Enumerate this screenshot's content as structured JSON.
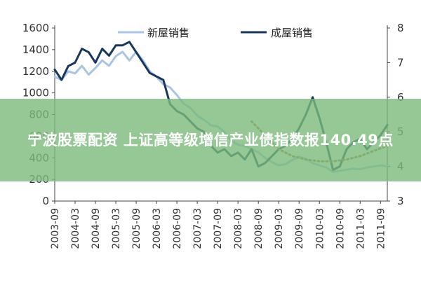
{
  "banner": {
    "headline": "宁波股票配资 上证高等级增信产业债指数报140.49点"
  },
  "chart_data": {
    "type": "line",
    "x": [
      "2003-09",
      "2003-11",
      "2004-01",
      "2004-03",
      "2004-05",
      "2004-07",
      "2004-09",
      "2004-11",
      "2005-01",
      "2005-03",
      "2005-05",
      "2005-07",
      "2005-09",
      "2005-11",
      "2006-01",
      "2006-03",
      "2006-05",
      "2006-07",
      "2006-09",
      "2006-11",
      "2007-01",
      "2007-03",
      "2007-05",
      "2007-07",
      "2007-09",
      "2007-11",
      "2008-01",
      "2008-03",
      "2008-05",
      "2008-07",
      "2008-09",
      "2008-11",
      "2009-01",
      "2009-03",
      "2009-05",
      "2009-07",
      "2009-09",
      "2009-11",
      "2010-01",
      "2010-03",
      "2010-05",
      "2010-07",
      "2010-09",
      "2010-11",
      "2011-01",
      "2011-03",
      "2011-05",
      "2011-07",
      "2011-09",
      "2011-11"
    ],
    "x_ticks": [
      "2003-09",
      "2004-03",
      "2004-09",
      "2005-03",
      "2005-09",
      "2006-03",
      "2006-09",
      "2007-03",
      "2007-09",
      "2008-03",
      "2008-09",
      "2009-03",
      "2009-09",
      "2010-03",
      "2010-09",
      "2011-03",
      "2011-09"
    ],
    "series": [
      {
        "name": "新屋销售",
        "axis": "left",
        "color": "#a9c4e8",
        "values": [
          1150,
          1120,
          1200,
          1180,
          1250,
          1170,
          1230,
          1300,
          1250,
          1340,
          1380,
          1300,
          1380,
          1300,
          1200,
          1150,
          1080,
          1050,
          980,
          900,
          860,
          790,
          750,
          700,
          690,
          640,
          560,
          520,
          510,
          480,
          450,
          400,
          360,
          330,
          340,
          380,
          410,
          390,
          350,
          330,
          310,
          270,
          280,
          290,
          300,
          295,
          310,
          320,
          330,
          320
        ]
      },
      {
        "name": "成屋销售",
        "axis": "right",
        "color": "#17375e",
        "values": [
          6.8,
          6.5,
          6.9,
          7.0,
          7.4,
          7.3,
          7.0,
          7.4,
          7.2,
          7.5,
          7.5,
          7.6,
          7.3,
          7.0,
          6.7,
          6.6,
          6.5,
          5.8,
          5.6,
          5.5,
          5.3,
          5.1,
          5.0,
          4.6,
          4.4,
          4.5,
          4.3,
          4.4,
          4.2,
          4.5,
          4.0,
          4.1,
          4.3,
          4.5,
          4.6,
          4.8,
          5.1,
          5.5,
          6.0,
          5.4,
          4.7,
          3.9,
          4.0,
          4.5,
          4.7,
          4.8,
          4.5,
          4.7,
          4.9,
          5.2
        ]
      }
    ],
    "trend": {
      "color": "#a0783c",
      "x": [
        "2008-07",
        "2008-11",
        "2009-03",
        "2009-07",
        "2009-11",
        "2010-03",
        "2010-07",
        "2010-11",
        "2011-03",
        "2011-07",
        "2011-11"
      ],
      "values": [
        5.3,
        4.9,
        4.5,
        4.3,
        4.2,
        4.15,
        4.15,
        4.2,
        4.3,
        4.45,
        4.6
      ]
    },
    "left_axis": {
      "ylim": [
        0,
        1600
      ],
      "ticks": [
        "0",
        "200",
        "400",
        "600",
        "800",
        "1000",
        "1200",
        "1400",
        "1600"
      ]
    },
    "right_axis": {
      "ylim": [
        3,
        8
      ],
      "ticks": [
        "3",
        "4",
        "5",
        "6",
        "7",
        "8"
      ]
    },
    "legend_placement": "top-center",
    "grid": false
  }
}
